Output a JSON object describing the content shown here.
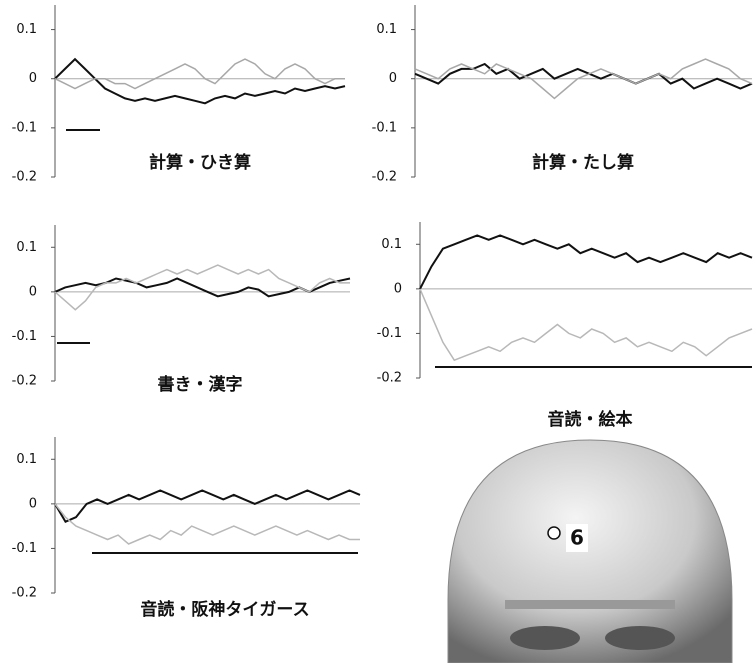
{
  "chart_data": [
    {
      "type": "line",
      "title": "計算・ひき算",
      "ylim": [
        -0.2,
        0.15
      ],
      "yticks": [
        -0.2,
        -0.1,
        0,
        0.1
      ],
      "series": [
        {
          "color": "#111111",
          "values": [
            0,
            0.02,
            0.04,
            0.02,
            0.0,
            -0.02,
            -0.03,
            -0.04,
            -0.045,
            -0.04,
            -0.045,
            -0.04,
            -0.035,
            -0.04,
            -0.045,
            -0.05,
            -0.04,
            -0.035,
            -0.04,
            -0.03,
            -0.035,
            -0.03,
            -0.025,
            -0.03,
            -0.02,
            -0.025,
            -0.02,
            -0.015,
            -0.02,
            -0.015
          ]
        },
        {
          "color": "#a8a8a8",
          "values": [
            0,
            -0.01,
            -0.02,
            -0.01,
            0,
            0.0,
            -0.01,
            -0.01,
            -0.02,
            -0.01,
            0.0,
            0.01,
            0.02,
            0.03,
            0.02,
            0.0,
            -0.01,
            0.01,
            0.03,
            0.04,
            0.03,
            0.01,
            0.0,
            0.02,
            0.03,
            0.02,
            0.0,
            -0.01,
            0.0,
            0.0
          ]
        }
      ]
    },
    {
      "type": "line",
      "title": "計算・たし算",
      "ylim": [
        -0.2,
        0.15
      ],
      "yticks": [
        -0.2,
        -0.1,
        0,
        0.1
      ],
      "series": [
        {
          "color": "#111111",
          "values": [
            0.01,
            0.0,
            -0.01,
            0.01,
            0.02,
            0.02,
            0.03,
            0.01,
            0.02,
            0.0,
            0.01,
            0.02,
            0.0,
            0.01,
            0.02,
            0.01,
            0.0,
            0.01,
            0.0,
            -0.01,
            0.0,
            0.01,
            -0.01,
            0.0,
            -0.02,
            -0.01,
            0.0,
            -0.01,
            -0.02,
            -0.01
          ]
        },
        {
          "color": "#a8a8a8",
          "values": [
            0.02,
            0.01,
            0.0,
            0.02,
            0.03,
            0.02,
            0.01,
            0.03,
            0.02,
            0.01,
            0.0,
            -0.02,
            -0.04,
            -0.02,
            0.0,
            0.01,
            0.02,
            0.01,
            0.0,
            -0.01,
            0.0,
            0.01,
            0.0,
            0.02,
            0.03,
            0.04,
            0.03,
            0.02,
            0.0,
            -0.01
          ]
        }
      ]
    },
    {
      "type": "line",
      "title": "書き・漢字",
      "ylim": [
        -0.2,
        0.15
      ],
      "yticks": [
        -0.2,
        -0.1,
        0,
        0.1
      ],
      "series": [
        {
          "color": "#111111",
          "values": [
            0,
            0.01,
            0.015,
            0.02,
            0.015,
            0.02,
            0.03,
            0.025,
            0.02,
            0.01,
            0.015,
            0.02,
            0.03,
            0.02,
            0.01,
            0.0,
            -0.01,
            -0.005,
            0.0,
            0.01,
            0.005,
            -0.01,
            -0.005,
            0.0,
            0.01,
            0.0,
            0.01,
            0.02,
            0.025,
            0.03
          ]
        },
        {
          "color": "#b8b8b8",
          "values": [
            0,
            -0.02,
            -0.04,
            -0.02,
            0.01,
            0.02,
            0.02,
            0.03,
            0.02,
            0.03,
            0.04,
            0.05,
            0.04,
            0.05,
            0.04,
            0.05,
            0.06,
            0.05,
            0.04,
            0.05,
            0.04,
            0.05,
            0.03,
            0.02,
            0.01,
            0.0,
            0.02,
            0.03,
            0.02,
            0.02
          ]
        }
      ]
    },
    {
      "type": "line",
      "title": "音読・絵本",
      "ylim": [
        -0.2,
        0.15
      ],
      "yticks": [
        -0.2,
        -0.1,
        0,
        0.1
      ],
      "series": [
        {
          "color": "#111111",
          "values": [
            0,
            0.05,
            0.09,
            0.1,
            0.11,
            0.12,
            0.11,
            0.12,
            0.11,
            0.1,
            0.11,
            0.1,
            0.09,
            0.1,
            0.08,
            0.09,
            0.08,
            0.07,
            0.08,
            0.06,
            0.07,
            0.06,
            0.07,
            0.08,
            0.07,
            0.06,
            0.08,
            0.07,
            0.08,
            0.07
          ]
        },
        {
          "color": "#b8b8b8",
          "values": [
            0,
            -0.06,
            -0.12,
            -0.16,
            -0.15,
            -0.14,
            -0.13,
            -0.14,
            -0.12,
            -0.11,
            -0.12,
            -0.1,
            -0.08,
            -0.1,
            -0.11,
            -0.09,
            -0.1,
            -0.12,
            -0.11,
            -0.13,
            -0.12,
            -0.13,
            -0.14,
            -0.12,
            -0.13,
            -0.15,
            -0.13,
            -0.11,
            -0.1,
            -0.09
          ]
        }
      ]
    },
    {
      "type": "line",
      "title": "音読・阪神タイガース",
      "ylim": [
        -0.2,
        0.15
      ],
      "yticks": [
        -0.2,
        -0.1,
        0,
        0.1
      ],
      "series": [
        {
          "color": "#111111",
          "values": [
            0,
            -0.04,
            -0.03,
            0.0,
            0.01,
            0.0,
            0.01,
            0.02,
            0.01,
            0.02,
            0.03,
            0.02,
            0.01,
            0.02,
            0.03,
            0.02,
            0.01,
            0.02,
            0.01,
            0.0,
            0.01,
            0.02,
            0.01,
            0.02,
            0.03,
            0.02,
            0.01,
            0.02,
            0.03,
            0.02
          ]
        },
        {
          "color": "#b8b8b8",
          "values": [
            0,
            -0.03,
            -0.05,
            -0.06,
            -0.07,
            -0.08,
            -0.07,
            -0.09,
            -0.08,
            -0.07,
            -0.08,
            -0.06,
            -0.07,
            -0.05,
            -0.06,
            -0.07,
            -0.06,
            -0.05,
            -0.06,
            -0.07,
            -0.06,
            -0.05,
            -0.06,
            -0.07,
            -0.06,
            -0.07,
            -0.08,
            -0.07,
            -0.08,
            -0.08
          ]
        }
      ]
    }
  ],
  "probe_label": "6"
}
